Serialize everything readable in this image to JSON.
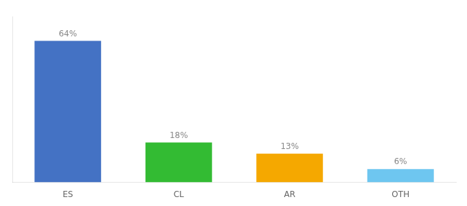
{
  "chart_data": {
    "type": "bar",
    "categories": [
      "ES",
      "CL",
      "AR",
      "OTH"
    ],
    "values": [
      64,
      18,
      13,
      6
    ],
    "value_labels": [
      "64%",
      "18%",
      "13%",
      "6%"
    ],
    "data_labels": true,
    "colors": [
      "#4472c4",
      "#33bb33",
      "#f5a800",
      "#6ec6f0"
    ],
    "ylim": [
      0,
      75
    ],
    "tick_labels": "x",
    "grid": false
  }
}
